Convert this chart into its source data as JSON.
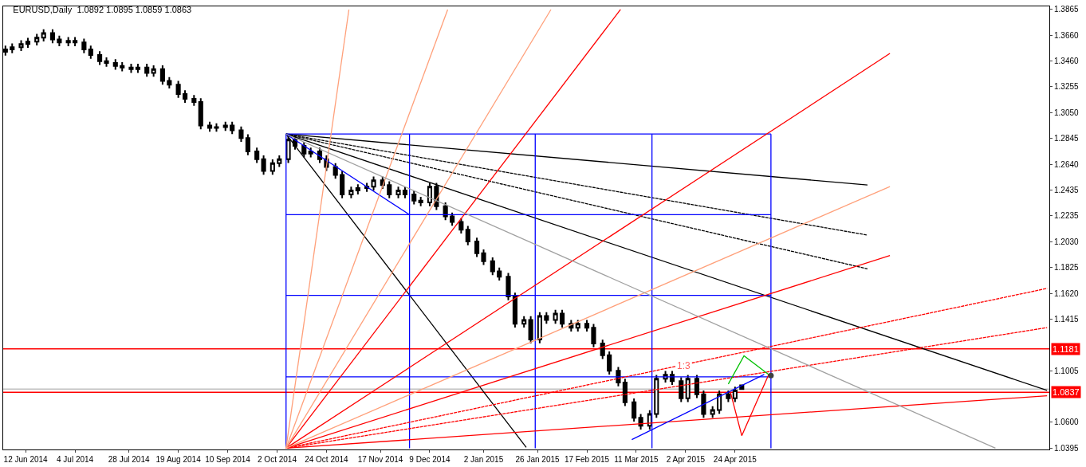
{
  "chart_data": {
    "type": "candlestick",
    "title": "EURUSD,Daily  1.0892 1.0895 1.0859 1.0863",
    "x": [
      "2014-06-03",
      "2014-06-06",
      "2014-06-10",
      "2014-06-13",
      "2014-06-17",
      "2014-06-20",
      "2014-06-24",
      "2014-06-27",
      "2014-07-01",
      "2014-07-04",
      "2014-07-08",
      "2014-07-11",
      "2014-07-15",
      "2014-07-18",
      "2014-07-22",
      "2014-07-25",
      "2014-07-29",
      "2014-08-01",
      "2014-08-05",
      "2014-08-08",
      "2014-08-12",
      "2014-08-15",
      "2014-08-19",
      "2014-08-22",
      "2014-08-26",
      "2014-08-29",
      "2014-09-02",
      "2014-09-05",
      "2014-09-09",
      "2014-09-12",
      "2014-09-16",
      "2014-09-19",
      "2014-09-23",
      "2014-09-26",
      "2014-09-30",
      "2014-10-03",
      "2014-10-07",
      "2014-10-10",
      "2014-10-14",
      "2014-10-17",
      "2014-10-21",
      "2014-10-24",
      "2014-10-28",
      "2014-10-31",
      "2014-11-04",
      "2014-11-07",
      "2014-11-11",
      "2014-11-14",
      "2014-11-18",
      "2014-11-21",
      "2014-11-25",
      "2014-11-28",
      "2014-12-02",
      "2014-12-05",
      "2014-12-09",
      "2014-12-12",
      "2014-12-16",
      "2014-12-19",
      "2014-12-23",
      "2014-12-26",
      "2014-12-30",
      "2015-01-02",
      "2015-01-06",
      "2015-01-09",
      "2015-01-13",
      "2015-01-16",
      "2015-01-20",
      "2015-01-23",
      "2015-01-27",
      "2015-01-30",
      "2015-02-03",
      "2015-02-06",
      "2015-02-10",
      "2015-02-13",
      "2015-02-17",
      "2015-02-20",
      "2015-02-24",
      "2015-02-27",
      "2015-03-03",
      "2015-03-06",
      "2015-03-10",
      "2015-03-13",
      "2015-03-17",
      "2015-03-20",
      "2015-03-24",
      "2015-03-27",
      "2015-03-31",
      "2015-04-03",
      "2015-04-07",
      "2015-04-10",
      "2015-04-14",
      "2015-04-17",
      "2015-04-21",
      "2015-04-24",
      "2015-04-27"
    ],
    "ohlc": [
      [
        1.353,
        1.3579,
        1.35,
        1.3549
      ],
      [
        1.3549,
        1.3597,
        1.3519,
        1.3567
      ],
      [
        1.3567,
        1.3622,
        1.3537,
        1.3592
      ],
      [
        1.3592,
        1.3641,
        1.3562,
        1.3611
      ],
      [
        1.3611,
        1.3672,
        1.3581,
        1.3642
      ],
      [
        1.3642,
        1.3709,
        1.3612,
        1.3679
      ],
      [
        1.3679,
        1.3709,
        1.3599,
        1.3629
      ],
      [
        1.3629,
        1.3659,
        1.3575,
        1.3605
      ],
      [
        1.3605,
        1.3647,
        1.3575,
        1.3617
      ],
      [
        1.3617,
        1.3647,
        1.3575,
        1.3605
      ],
      [
        1.3605,
        1.3635,
        1.3519,
        1.3549
      ],
      [
        1.3549,
        1.3579,
        1.3475,
        1.3505
      ],
      [
        1.3505,
        1.3535,
        1.3426,
        1.3456
      ],
      [
        1.3456,
        1.3486,
        1.3413,
        1.3443
      ],
      [
        1.3443,
        1.3473,
        1.3389,
        1.3419
      ],
      [
        1.3419,
        1.3449,
        1.3376,
        1.3406
      ],
      [
        1.3406,
        1.3436,
        1.3364,
        1.3394
      ],
      [
        1.3394,
        1.3436,
        1.3364,
        1.3406
      ],
      [
        1.3406,
        1.3436,
        1.3333,
        1.3363
      ],
      [
        1.3363,
        1.3424,
        1.3333,
        1.3394
      ],
      [
        1.3394,
        1.3424,
        1.3271,
        1.3301
      ],
      [
        1.3301,
        1.3331,
        1.324,
        1.327
      ],
      [
        1.327,
        1.33,
        1.3166,
        1.3196
      ],
      [
        1.3196,
        1.3226,
        1.3128,
        1.3158
      ],
      [
        1.3158,
        1.3188,
        1.3104,
        1.3134
      ],
      [
        1.3134,
        1.3164,
        1.2918,
        1.2948
      ],
      [
        1.2948,
        1.2978,
        1.2899,
        1.2929
      ],
      [
        1.2929,
        1.2965,
        1.2899,
        1.2935
      ],
      [
        1.2935,
        1.2978,
        1.2905,
        1.2948
      ],
      [
        1.2948,
        1.2978,
        1.288,
        1.291
      ],
      [
        1.291,
        1.294,
        1.2819,
        1.2849
      ],
      [
        1.2849,
        1.2879,
        1.2713,
        1.2743
      ],
      [
        1.2743,
        1.2773,
        1.2651,
        1.2681
      ],
      [
        1.2681,
        1.2711,
        1.2558,
        1.2588
      ],
      [
        1.2588,
        1.268,
        1.2558,
        1.265
      ],
      [
        1.265,
        1.2711,
        1.262,
        1.2681
      ],
      [
        1.2681,
        1.2866,
        1.2651,
        1.2836
      ],
      [
        1.2836,
        1.2866,
        1.2757,
        1.2787
      ],
      [
        1.2787,
        1.2817,
        1.2695,
        1.2725
      ],
      [
        1.2725,
        1.2773,
        1.2695,
        1.2743
      ],
      [
        1.2743,
        1.2773,
        1.2651,
        1.2681
      ],
      [
        1.2681,
        1.2711,
        1.2589,
        1.2619
      ],
      [
        1.2619,
        1.2649,
        1.2527,
        1.2557
      ],
      [
        1.2557,
        1.2587,
        1.2372,
        1.2402
      ],
      [
        1.2402,
        1.2463,
        1.2372,
        1.2433
      ],
      [
        1.2433,
        1.2482,
        1.2403,
        1.2452
      ],
      [
        1.2452,
        1.2494,
        1.2422,
        1.2464
      ],
      [
        1.2464,
        1.2544,
        1.2434,
        1.2514
      ],
      [
        1.2514,
        1.2544,
        1.2447,
        1.2477
      ],
      [
        1.2477,
        1.2507,
        1.2372,
        1.2402
      ],
      [
        1.2402,
        1.2463,
        1.2372,
        1.2433
      ],
      [
        1.2433,
        1.2463,
        1.2372,
        1.2402
      ],
      [
        1.2402,
        1.2432,
        1.2323,
        1.2353
      ],
      [
        1.2353,
        1.2383,
        1.231,
        1.234
      ],
      [
        1.234,
        1.2494,
        1.231,
        1.2464
      ],
      [
        1.2464,
        1.2494,
        1.2279,
        1.2309
      ],
      [
        1.2309,
        1.2339,
        1.2199,
        1.2229
      ],
      [
        1.2229,
        1.2259,
        1.2155,
        1.2185
      ],
      [
        1.2185,
        1.2215,
        1.2093,
        1.2123
      ],
      [
        1.2123,
        1.2153,
        1.2,
        1.203
      ],
      [
        1.203,
        1.206,
        1.1907,
        1.1937
      ],
      [
        1.1937,
        1.1967,
        1.1845,
        1.1875
      ],
      [
        1.1875,
        1.1905,
        1.1764,
        1.1794
      ],
      [
        1.1794,
        1.1824,
        1.1721,
        1.1751
      ],
      [
        1.1751,
        1.1781,
        1.1566,
        1.1596
      ],
      [
        1.1596,
        1.1626,
        1.1349,
        1.1379
      ],
      [
        1.1379,
        1.144,
        1.1349,
        1.141
      ],
      [
        1.141,
        1.144,
        1.1225,
        1.1255
      ],
      [
        1.1255,
        1.1471,
        1.1225,
        1.1441
      ],
      [
        1.1441,
        1.1471,
        1.138,
        1.141
      ],
      [
        1.141,
        1.149,
        1.138,
        1.146
      ],
      [
        1.146,
        1.149,
        1.1349,
        1.1379
      ],
      [
        1.1379,
        1.1409,
        1.1318,
        1.1348
      ],
      [
        1.1348,
        1.1409,
        1.1318,
        1.1379
      ],
      [
        1.1379,
        1.1409,
        1.1318,
        1.1348
      ],
      [
        1.1348,
        1.1378,
        1.1194,
        1.1224
      ],
      [
        1.1224,
        1.1254,
        1.1101,
        1.1131
      ],
      [
        1.1131,
        1.1161,
        1.0977,
        1.1007
      ],
      [
        1.1007,
        1.1037,
        1.0884,
        1.0914
      ],
      [
        1.0914,
        1.0944,
        1.0729,
        1.0759
      ],
      [
        1.0759,
        1.0789,
        1.0605,
        1.0635
      ],
      [
        1.0635,
        1.0665,
        1.0543,
        1.0573
      ],
      [
        1.0573,
        1.0696,
        1.0543,
        1.0666
      ],
      [
        1.0666,
        1.0975,
        1.0636,
        1.0945
      ],
      [
        1.0945,
        1.1006,
        1.0915,
        1.0976
      ],
      [
        1.0976,
        1.1006,
        1.0896,
        1.0926
      ],
      [
        1.0926,
        1.0956,
        1.076,
        1.079
      ],
      [
        1.079,
        1.0975,
        1.076,
        1.0945
      ],
      [
        1.0945,
        1.0975,
        1.0791,
        1.0821
      ],
      [
        1.0821,
        1.0851,
        1.0636,
        1.0666
      ],
      [
        1.0666,
        1.0727,
        1.0636,
        1.0697
      ],
      [
        1.0697,
        1.0851,
        1.0667,
        1.0821
      ],
      [
        1.0821,
        1.0851,
        1.076,
        1.079
      ],
      [
        1.079,
        1.0882,
        1.076,
        1.0852
      ],
      [
        1.0892,
        1.0895,
        1.0859,
        1.0863
      ]
    ],
    "series": [
      {
        "type": "line",
        "color": "#000000",
        "x": [
          "2014-10-06",
          "2015-09-10"
        ],
        "values": [
          1.288,
          1.0852
        ]
      },
      {
        "type": "line",
        "color": "#000000",
        "x": [
          "2014-10-06",
          "2015-01-21"
        ],
        "values": [
          1.288,
          1.0401
        ]
      },
      {
        "type": "line",
        "color": "#000000",
        "x": [
          "2014-10-06",
          "2015-06-22"
        ],
        "values": [
          1.288,
          1.2477
        ]
      },
      {
        "type": "line",
        "color": "#000000",
        "line_style": "dashed",
        "x": [
          "2014-10-06",
          "2015-06-22"
        ],
        "values": [
          1.288,
          1.2081
        ]
      },
      {
        "type": "line",
        "color": "#000000",
        "line_style": "dashed",
        "x": [
          "2014-10-06",
          "2015-06-22"
        ],
        "values": [
          1.288,
          1.1814
        ]
      },
      {
        "type": "line",
        "color": "#0000ff",
        "x": [
          "2014-10-06",
          "2014-11-30"
        ],
        "values": [
          1.288,
          1.2242
        ]
      },
      {
        "type": "line",
        "color": "#0000ff",
        "x": [
          "2014-10-06",
          "2015-05-10"
        ],
        "values": [
          1.288,
          1.288
        ]
      },
      {
        "type": "line",
        "color": "#0000ff",
        "x": [
          "2014-10-06",
          "2015-05-10"
        ],
        "values": [
          1.2242,
          1.2242
        ]
      },
      {
        "type": "line",
        "color": "#0000ff",
        "x": [
          "2014-10-06",
          "2015-05-10"
        ],
        "values": [
          1.1604,
          1.1604
        ]
      },
      {
        "type": "line",
        "color": "#0000ff",
        "x": [
          "2014-10-06",
          "2015-05-10"
        ],
        "values": [
          1.0959,
          1.0959
        ]
      },
      {
        "type": "line",
        "color": "#0000ff",
        "x": [
          "2014-10-06",
          "2014-10-06"
        ],
        "values": [
          1.288,
          1.0395
        ]
      },
      {
        "type": "line",
        "color": "#0000ff",
        "x": [
          "2014-11-30",
          "2014-11-30"
        ],
        "values": [
          1.288,
          1.0395
        ]
      },
      {
        "type": "line",
        "color": "#0000ff",
        "x": [
          "2015-01-25",
          "2015-01-25"
        ],
        "values": [
          1.288,
          1.0395
        ]
      },
      {
        "type": "line",
        "color": "#0000ff",
        "x": [
          "2015-03-18",
          "2015-03-18"
        ],
        "values": [
          1.288,
          1.0395
        ]
      },
      {
        "type": "line",
        "color": "#0000ff",
        "x": [
          "2015-05-10",
          "2015-05-10"
        ],
        "values": [
          1.288,
          1.0395
        ]
      },
      {
        "type": "line",
        "color": "#ff0000",
        "x": [
          "2014-10-06",
          "2015-03-04"
        ],
        "values": [
          1.0395,
          1.3865
        ]
      },
      {
        "type": "line",
        "color": "#ff0000",
        "x": [
          "2014-10-06",
          "2015-07-02"
        ],
        "values": [
          1.0395,
          1.3518
        ]
      },
      {
        "type": "line",
        "color": "#ff0000",
        "x": [
          "2014-10-06",
          "2015-07-02"
        ],
        "values": [
          1.0395,
          1.1919
        ]
      },
      {
        "type": "line",
        "color": "#ff0000",
        "x": [
          "2014-10-06",
          "2015-09-10"
        ],
        "values": [
          1.0395,
          1.081
        ]
      },
      {
        "type": "line",
        "color": "#ff0000",
        "line_style": "dashed",
        "x": [
          "2014-10-06",
          "2015-09-10"
        ],
        "values": [
          1.0395,
          1.1659
        ]
      },
      {
        "type": "line",
        "color": "#ff0000",
        "line_style": "dashed",
        "x": [
          "2014-10-06",
          "2015-09-10"
        ],
        "values": [
          1.0395,
          1.1349
        ]
      },
      {
        "type": "line",
        "color": "#ffa07a",
        "x": [
          "2014-10-06",
          "2015-07-02"
        ],
        "values": [
          1.0395,
          1.2465
        ]
      },
      {
        "type": "line",
        "color": "#ffa07a",
        "x": [
          "2014-10-06",
          "2014-11-03"
        ],
        "values": [
          1.0395,
          1.3865
        ]
      },
      {
        "type": "line",
        "color": "#ffa07a",
        "x": [
          "2014-10-06",
          "2014-12-17"
        ],
        "values": [
          1.0395,
          1.3865
        ]
      },
      {
        "type": "line",
        "color": "#ffa07a",
        "x": [
          "2014-10-06",
          "2015-02-01"
        ],
        "values": [
          1.0395,
          1.3865
        ]
      },
      {
        "type": "line",
        "color": "#a0a0a0",
        "x": [
          "2014-10-06",
          "2015-08-18"
        ],
        "values": [
          1.288,
          1.0395
        ]
      },
      {
        "type": "line",
        "color": "#0000ff",
        "x": [
          "2015-03-09",
          "2015-05-07"
        ],
        "values": [
          1.0463,
          1.0978
        ]
      },
      {
        "type": "line",
        "color": "#00c000",
        "x": [
          "2015-04-21",
          "2015-04-28",
          "2015-05-09"
        ],
        "values": [
          1.0903,
          1.1126,
          1.0978
        ]
      },
      {
        "type": "line",
        "color": "#ff0000",
        "x": [
          "2015-04-22",
          "2015-04-27",
          "2015-05-09"
        ],
        "values": [
          1.0835,
          1.0494,
          1.0978
        ]
      },
      {
        "type": "scatter",
        "color": "#404040",
        "marker": "circle",
        "x": [
          "2015-05-10"
        ],
        "values": [
          1.097
        ]
      }
    ],
    "ref_lines": [
      {
        "axis": "y",
        "value": 1.1181,
        "label": "1.1181",
        "color": "#ff0000"
      },
      {
        "axis": "y",
        "value": 1.0837,
        "label": "1.0837",
        "color": "#ff0000"
      },
      {
        "axis": "y",
        "value": 1.0863,
        "color": "#c0c0c0"
      }
    ],
    "annotations": [
      {
        "text": "1:3",
        "x": "2015-04-01",
        "y": 1.1045
      }
    ],
    "xlim": [
      "2014-06-02",
      "2015-09-11"
    ],
    "xticks": [
      {
        "value": "2014-06-12",
        "label": "12 Jun 2014"
      },
      {
        "value": "2014-07-04",
        "label": "4 Jul 2014"
      },
      {
        "value": "2014-07-28",
        "label": "28 Jul 2014"
      },
      {
        "value": "2014-08-19",
        "label": "19 Aug 2014"
      },
      {
        "value": "2014-09-10",
        "label": "10 Sep 2014"
      },
      {
        "value": "2014-10-02",
        "label": "2 Oct 2014"
      },
      {
        "value": "2014-10-24",
        "label": "24 Oct 2014"
      },
      {
        "value": "2014-11-17",
        "label": "17 Nov 2014"
      },
      {
        "value": "2014-12-09",
        "label": "9 Dec 2014"
      },
      {
        "value": "2015-01-02",
        "label": "2 Jan 2015"
      },
      {
        "value": "2015-01-26",
        "label": "26 Jan 2015"
      },
      {
        "value": "2015-02-17",
        "label": "17 Feb 2015"
      },
      {
        "value": "2015-03-11",
        "label": "11 Mar 2015"
      },
      {
        "value": "2015-04-02",
        "label": "2 Apr 2015"
      },
      {
        "value": "2015-04-24",
        "label": "24 Apr 2015"
      }
    ],
    "ylim": [
      1.0385,
      1.389
    ],
    "yticks": [
      {
        "value": 1.0395,
        "label": "1.0395"
      },
      {
        "value": 1.06,
        "label": "1.0600"
      },
      {
        "value": 1.1005,
        "label": "1.1005"
      },
      {
        "value": 1.1415,
        "label": "1.1415"
      },
      {
        "value": 1.162,
        "label": "1.1620"
      },
      {
        "value": 1.1825,
        "label": "1.1825"
      },
      {
        "value": 1.203,
        "label": "1.2030"
      },
      {
        "value": 1.2235,
        "label": "1.2235"
      },
      {
        "value": 1.2435,
        "label": "1.2435"
      },
      {
        "value": 1.264,
        "label": "1.2640"
      },
      {
        "value": 1.2845,
        "label": "1.2845"
      },
      {
        "value": 1.305,
        "label": "1.3050"
      },
      {
        "value": 1.3255,
        "label": "1.3255"
      },
      {
        "value": 1.346,
        "label": "1.3460"
      },
      {
        "value": 1.366,
        "label": "1.3660"
      },
      {
        "value": 1.3865,
        "label": "1.3865"
      }
    ],
    "tick_labels": [
      "x",
      "y"
    ]
  }
}
